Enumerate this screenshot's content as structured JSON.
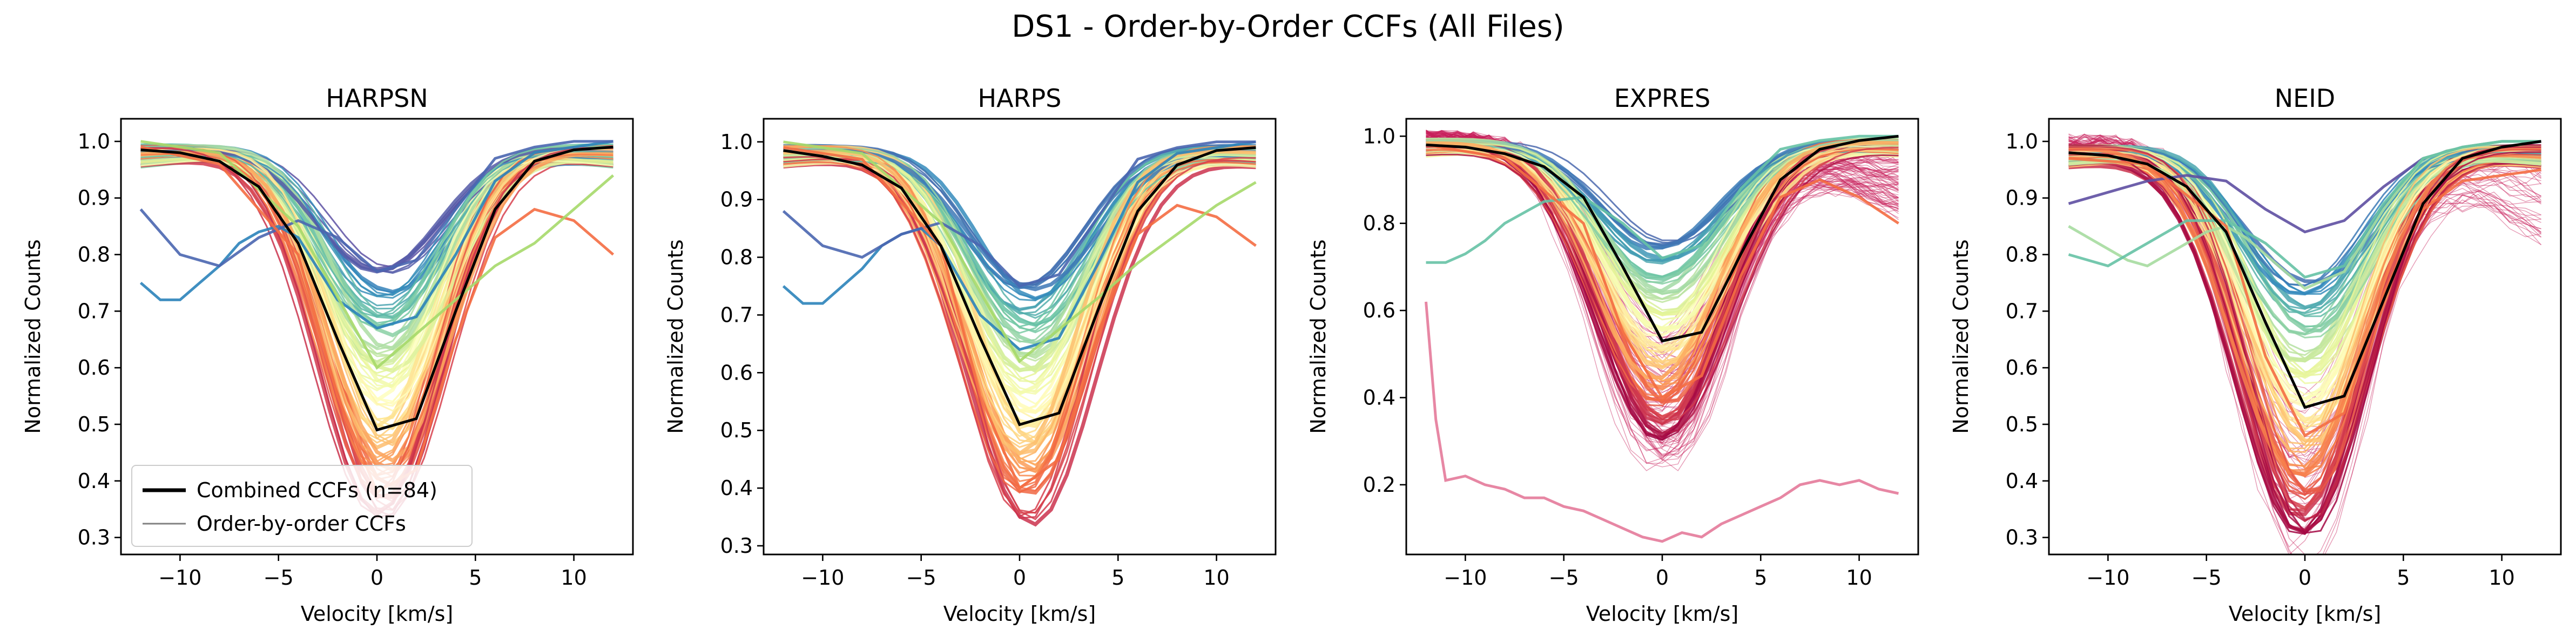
{
  "figure": {
    "title": "DS1 - Order-by-Order CCFs (All Files)"
  },
  "chart_data": [
    {
      "type": "line",
      "title": "HARPSN",
      "xlabel": "Velocity [km/s]",
      "ylabel": "Normalized Counts",
      "xlim": [
        -13,
        13
      ],
      "ylim": [
        0.27,
        1.04
      ],
      "xticks": [
        -10,
        -5,
        0,
        5,
        10
      ],
      "xtick_labels": [
        "−10",
        "−5",
        "0",
        "5",
        "10"
      ],
      "yticks": [
        0.3,
        0.4,
        0.5,
        0.6,
        0.7,
        0.8,
        0.9,
        1.0
      ],
      "ytick_labels": [
        "0.3",
        "0.4",
        "0.5",
        "0.6",
        "0.7",
        "0.8",
        "0.9",
        "1.0"
      ],
      "legend": {
        "placement": "lower-left",
        "entries": [
          {
            "label": "Combined CCFs (n=84)",
            "color": "#000000"
          },
          {
            "label": "Order-by-order CCFs",
            "color": "#808080"
          }
        ]
      },
      "combined_ccf": {
        "x": [
          -12,
          -10,
          -8,
          -6,
          -4,
          -2,
          0,
          2,
          4,
          6,
          8,
          10,
          12
        ],
        "y": [
          0.985,
          0.98,
          0.965,
          0.92,
          0.82,
          0.65,
          0.49,
          0.51,
          0.7,
          0.88,
          0.965,
          0.985,
          0.99
        ]
      },
      "order_profiles": {
        "x_range": [
          -12,
          12
        ],
        "center_kms": 0.3,
        "fwhm_kms": 7.0,
        "depths": [
          0.23,
          0.27,
          0.3,
          0.33,
          0.37,
          0.4,
          0.43,
          0.47,
          0.5,
          0.53,
          0.57,
          0.6,
          0.63,
          0.66
        ],
        "ordinary_count": 84,
        "outlier_order_count": 0,
        "colormap": "Spectral"
      },
      "special_curves": [
        {
          "color": "#2b83ba",
          "x": [
            -12,
            -11,
            -10,
            -9,
            -8,
            -7,
            -6,
            -5,
            -4,
            -2,
            0,
            2,
            4,
            6,
            8,
            10,
            12
          ],
          "y": [
            0.75,
            0.72,
            0.72,
            0.75,
            0.78,
            0.82,
            0.84,
            0.85,
            0.83,
            0.72,
            0.67,
            0.69,
            0.8,
            0.93,
            0.98,
            0.99,
            1.0
          ]
        },
        {
          "color": "#4a66b0",
          "x": [
            -12,
            -10,
            -8,
            -6,
            -4,
            -2,
            0,
            2,
            4,
            6,
            8,
            10,
            12
          ],
          "y": [
            0.88,
            0.8,
            0.78,
            0.83,
            0.86,
            0.83,
            0.77,
            0.79,
            0.88,
            0.97,
            0.99,
            1.0,
            1.0
          ]
        },
        {
          "color": "#f46d43",
          "x": [
            -12,
            -8,
            -4,
            -2,
            0,
            2,
            4,
            6,
            8,
            10,
            12
          ],
          "y": [
            0.99,
            0.96,
            0.8,
            0.55,
            0.38,
            0.42,
            0.65,
            0.83,
            0.88,
            0.86,
            0.8
          ]
        },
        {
          "color": "#a6d96a",
          "x": [
            -12,
            -8,
            -4,
            0,
            4,
            6,
            8,
            10,
            12
          ],
          "y": [
            1.0,
            0.98,
            0.85,
            0.6,
            0.72,
            0.78,
            0.82,
            0.88,
            0.94
          ]
        }
      ]
    },
    {
      "type": "line",
      "title": "HARPS",
      "xlabel": "Velocity [km/s]",
      "ylabel": "Normalized Counts",
      "xlim": [
        -13,
        13
      ],
      "ylim": [
        0.285,
        1.04
      ],
      "xticks": [
        -10,
        -5,
        0,
        5,
        10
      ],
      "xtick_labels": [
        "−10",
        "−5",
        "0",
        "5",
        "10"
      ],
      "yticks": [
        0.3,
        0.4,
        0.5,
        0.6,
        0.7,
        0.8,
        0.9,
        1.0
      ],
      "ytick_labels": [
        "0.3",
        "0.4",
        "0.5",
        "0.6",
        "0.7",
        "0.8",
        "0.9",
        "1.0"
      ],
      "combined_ccf": {
        "x": [
          -12,
          -10,
          -8,
          -6,
          -4,
          -2,
          0,
          2,
          4,
          6,
          8,
          10,
          12
        ],
        "y": [
          0.985,
          0.975,
          0.96,
          0.92,
          0.82,
          0.66,
          0.51,
          0.53,
          0.71,
          0.88,
          0.96,
          0.985,
          0.99
        ]
      },
      "order_profiles": {
        "x_range": [
          -12,
          12
        ],
        "center_kms": 0.4,
        "fwhm_kms": 7.2,
        "depths": [
          0.25,
          0.28,
          0.31,
          0.34,
          0.37,
          0.4,
          0.43,
          0.46,
          0.49,
          0.52,
          0.55,
          0.58,
          0.61,
          0.65
        ],
        "ordinary_count": 84,
        "outlier_order_count": 0,
        "colormap": "Spectral"
      },
      "special_curves": [
        {
          "color": "#2b83ba",
          "x": [
            -12,
            -11,
            -10,
            -9,
            -8,
            -7,
            -6,
            -5,
            -4,
            -2,
            0,
            2,
            4,
            6,
            8,
            10,
            12
          ],
          "y": [
            0.75,
            0.72,
            0.72,
            0.75,
            0.78,
            0.82,
            0.84,
            0.85,
            0.82,
            0.7,
            0.64,
            0.66,
            0.79,
            0.93,
            0.98,
            0.99,
            1.0
          ]
        },
        {
          "color": "#4a66b0",
          "x": [
            -12,
            -10,
            -8,
            -6,
            -4,
            -2,
            0,
            2,
            4,
            6,
            8,
            10,
            12
          ],
          "y": [
            0.88,
            0.82,
            0.8,
            0.84,
            0.86,
            0.82,
            0.75,
            0.77,
            0.87,
            0.97,
            0.99,
            1.0,
            1.0
          ]
        },
        {
          "color": "#f46d43",
          "x": [
            -12,
            -8,
            -4,
            -2,
            0,
            2,
            4,
            6,
            8,
            10,
            12
          ],
          "y": [
            0.99,
            0.97,
            0.82,
            0.56,
            0.4,
            0.45,
            0.67,
            0.84,
            0.89,
            0.87,
            0.82
          ]
        },
        {
          "color": "#a6d96a",
          "x": [
            -12,
            -8,
            -4,
            0,
            4,
            6,
            8,
            10,
            12
          ],
          "y": [
            1.0,
            0.98,
            0.86,
            0.62,
            0.73,
            0.79,
            0.84,
            0.89,
            0.93
          ]
        }
      ]
    },
    {
      "type": "line",
      "title": "EXPRES",
      "xlabel": "Velocity [km/s]",
      "ylabel": "Normalized Counts",
      "xlim": [
        -13,
        13
      ],
      "ylim": [
        0.04,
        1.04
      ],
      "xticks": [
        -10,
        -5,
        0,
        5,
        10
      ],
      "xtick_labels": [
        "−10",
        "−5",
        "0",
        "5",
        "10"
      ],
      "yticks": [
        0.2,
        0.4,
        0.6,
        0.8,
        1.0
      ],
      "ytick_labels": [
        "0.2",
        "0.4",
        "0.6",
        "0.8",
        "1.0"
      ],
      "combined_ccf": {
        "x": [
          -12,
          -10,
          -8,
          -6,
          -4,
          -2,
          0,
          2,
          4,
          6,
          8,
          10,
          12
        ],
        "y": [
          0.98,
          0.975,
          0.96,
          0.93,
          0.86,
          0.7,
          0.53,
          0.55,
          0.73,
          0.9,
          0.97,
          0.99,
          1.0
        ]
      },
      "order_profiles": {
        "x_range": [
          -12,
          12
        ],
        "center_kms": 0.0,
        "fwhm_kms": 7.5,
        "depths": [
          0.25,
          0.29,
          0.33,
          0.37,
          0.41,
          0.45,
          0.49,
          0.53,
          0.57,
          0.61,
          0.65,
          0.69
        ],
        "ordinary_count": 84,
        "outlier_order_count": 90,
        "colormap": "Spectral"
      },
      "special_curves": [
        {
          "color": "#66c2a5",
          "x": [
            -12,
            -11,
            -10,
            -9,
            -8,
            -6,
            -4,
            -2,
            0,
            2,
            4,
            6,
            8,
            10,
            12
          ],
          "y": [
            0.71,
            0.71,
            0.73,
            0.76,
            0.8,
            0.85,
            0.86,
            0.8,
            0.72,
            0.75,
            0.88,
            0.97,
            0.99,
            1.0,
            1.0
          ]
        },
        {
          "color": "#f46d43",
          "x": [
            -12,
            -8,
            -4,
            -2,
            0,
            2,
            4,
            6,
            8,
            10,
            12
          ],
          "y": [
            0.98,
            0.95,
            0.8,
            0.55,
            0.4,
            0.45,
            0.68,
            0.86,
            0.9,
            0.86,
            0.8
          ]
        },
        {
          "color": "#e47a9a",
          "x": [
            -12,
            -11.5,
            -11,
            -10,
            -9,
            -8,
            -7,
            -6,
            -5,
            -4,
            -3,
            -2,
            -1,
            0,
            1,
            2,
            3,
            4,
            5,
            6,
            7,
            8,
            9,
            10,
            11,
            12
          ],
          "y": [
            0.62,
            0.35,
            0.21,
            0.22,
            0.2,
            0.19,
            0.17,
            0.17,
            0.15,
            0.14,
            0.12,
            0.1,
            0.08,
            0.07,
            0.09,
            0.08,
            0.11,
            0.13,
            0.15,
            0.17,
            0.2,
            0.21,
            0.2,
            0.21,
            0.19,
            0.18
          ]
        }
      ]
    },
    {
      "type": "line",
      "title": "NEID",
      "xlabel": "Velocity [km/s]",
      "ylabel": "Normalized Counts",
      "xlim": [
        -13,
        13
      ],
      "ylim": [
        0.27,
        1.04
      ],
      "xticks": [
        -10,
        -5,
        0,
        5,
        10
      ],
      "xtick_labels": [
        "−10",
        "−5",
        "0",
        "5",
        "10"
      ],
      "yticks": [
        0.3,
        0.4,
        0.5,
        0.6,
        0.7,
        0.8,
        0.9,
        1.0
      ],
      "ytick_labels": [
        "0.3",
        "0.4",
        "0.5",
        "0.6",
        "0.7",
        "0.8",
        "0.9",
        "1.0"
      ],
      "combined_ccf": {
        "x": [
          -12,
          -10,
          -8,
          -6,
          -4,
          -2,
          0,
          2,
          4,
          6,
          8,
          10,
          12
        ],
        "y": [
          0.98,
          0.975,
          0.96,
          0.92,
          0.84,
          0.68,
          0.53,
          0.55,
          0.72,
          0.89,
          0.97,
          0.99,
          1.0
        ]
      },
      "order_profiles": {
        "x_range": [
          -12,
          12
        ],
        "center_kms": 0.0,
        "fwhm_kms": 7.3,
        "depths": [
          0.26,
          0.3,
          0.34,
          0.38,
          0.42,
          0.46,
          0.5,
          0.54,
          0.58,
          0.62,
          0.66,
          0.7
        ],
        "ordinary_count": 84,
        "outlier_order_count": 40,
        "colormap": "Spectral"
      },
      "special_curves": [
        {
          "color": "#5e4fa2",
          "x": [
            -12,
            -10,
            -8,
            -6,
            -4,
            -2,
            0,
            2,
            4,
            6,
            8,
            10,
            12
          ],
          "y": [
            0.89,
            0.91,
            0.93,
            0.94,
            0.93,
            0.88,
            0.84,
            0.86,
            0.92,
            0.97,
            0.99,
            1.0,
            1.0
          ]
        },
        {
          "color": "#a6dba0",
          "x": [
            -12,
            -11,
            -10,
            -9,
            -8,
            -7,
            -6,
            -5,
            -4,
            -3,
            -2,
            0,
            2,
            4,
            6,
            8,
            10,
            12
          ],
          "y": [
            0.85,
            0.83,
            0.81,
            0.79,
            0.78,
            0.8,
            0.82,
            0.84,
            0.85,
            0.83,
            0.8,
            0.74,
            0.77,
            0.88,
            0.97,
            0.99,
            1.0,
            1.0
          ]
        },
        {
          "color": "#66c2a5",
          "x": [
            -12,
            -10,
            -8,
            -6,
            -4,
            -2,
            0,
            2,
            4,
            6,
            8,
            10,
            12
          ],
          "y": [
            0.8,
            0.78,
            0.82,
            0.86,
            0.86,
            0.82,
            0.76,
            0.78,
            0.89,
            0.97,
            0.99,
            1.0,
            1.0
          ]
        },
        {
          "color": "#f46d43",
          "x": [
            -12,
            -8,
            -4,
            -2,
            0,
            2,
            4,
            6,
            8,
            10,
            12
          ],
          "y": [
            0.97,
            0.96,
            0.85,
            0.62,
            0.48,
            0.52,
            0.73,
            0.88,
            0.93,
            0.94,
            0.95
          ]
        }
      ]
    }
  ]
}
